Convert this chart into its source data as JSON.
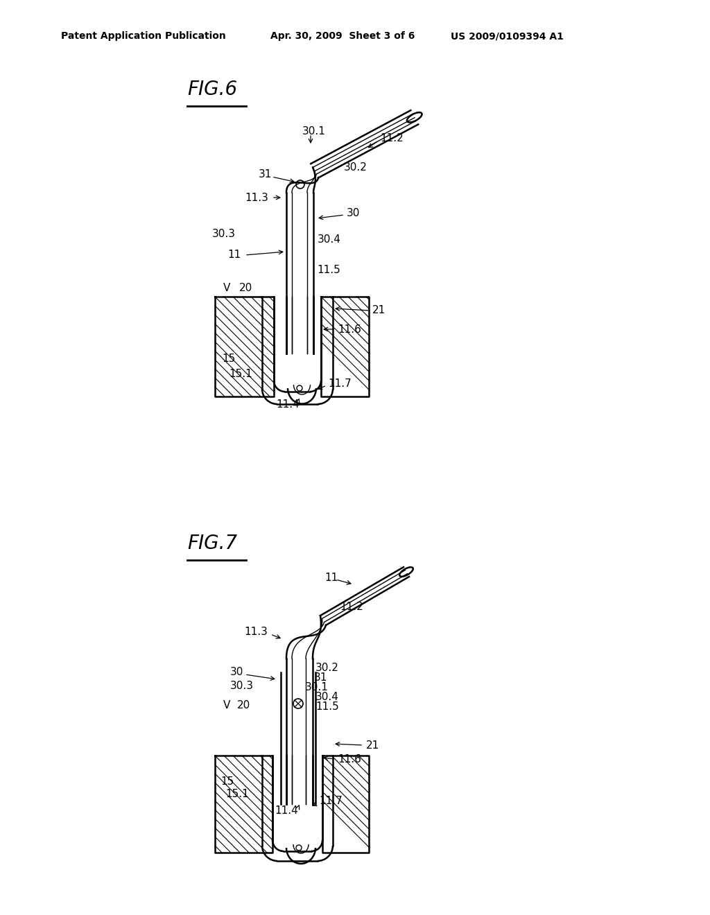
{
  "bg_color": "#ffffff",
  "line_color": "#000000",
  "header_left": "Patent Application Publication",
  "header_mid": "Apr. 30, 2009  Sheet 3 of 6",
  "header_right": "US 2009/0109394 A1",
  "fig6_label": "FIG.6",
  "fig7_label": "FIG.7",
  "header_fontsize": 10,
  "title_fontsize": 20,
  "label_fontsize": 11
}
